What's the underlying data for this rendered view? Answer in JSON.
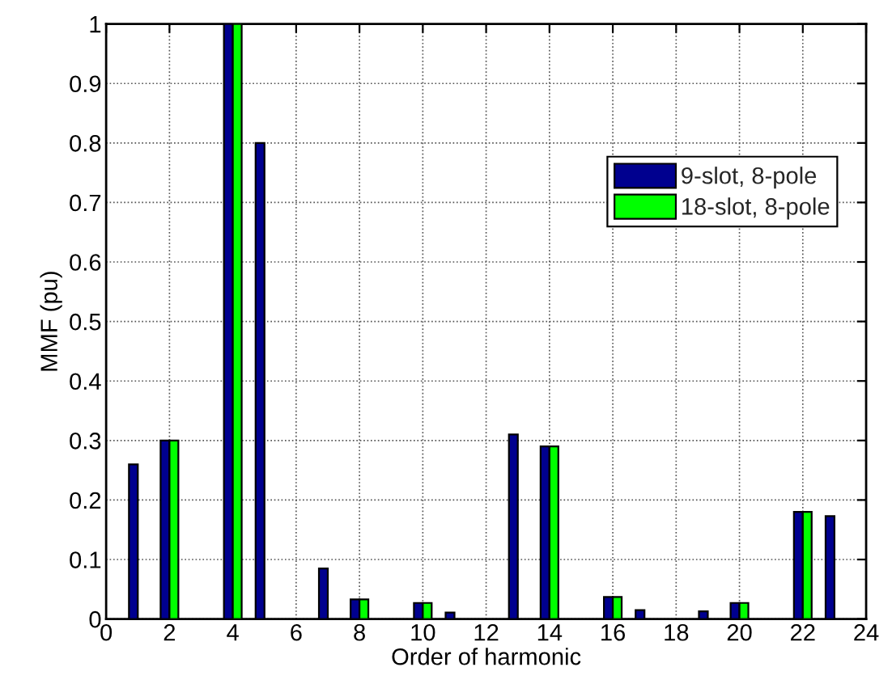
{
  "chart_data": {
    "type": "bar",
    "xlabel": "Order of harmonic",
    "ylabel": "MMF (pu)",
    "x": [
      1,
      2,
      4,
      5,
      7,
      8,
      10,
      11,
      13,
      14,
      16,
      17,
      19,
      20,
      22,
      23
    ],
    "series": [
      {
        "name": "9-slot, 8-pole",
        "color": "#00008f",
        "values": [
          0.26,
          0.3,
          1.0,
          0.8,
          0.085,
          0.033,
          0.027,
          0.011,
          0.31,
          0.29,
          0.037,
          0.015,
          0.013,
          0.027,
          0.18,
          0.173
        ]
      },
      {
        "name": "18-slot, 8-pole",
        "color": "#00ff00",
        "values": [
          null,
          0.3,
          1.0,
          null,
          null,
          0.033,
          0.027,
          null,
          null,
          0.29,
          0.037,
          null,
          null,
          0.027,
          0.18,
          null
        ]
      }
    ],
    "xlim": [
      0,
      24
    ],
    "xticks": [
      0,
      2,
      4,
      6,
      8,
      10,
      12,
      14,
      16,
      18,
      20,
      22,
      24
    ],
    "ylim": [
      0,
      1
    ],
    "yticks": [
      0,
      0.1,
      0.2,
      0.3,
      0.4,
      0.5,
      0.6,
      0.7,
      0.8,
      0.9,
      1
    ],
    "grid": true,
    "legend": "top right"
  }
}
